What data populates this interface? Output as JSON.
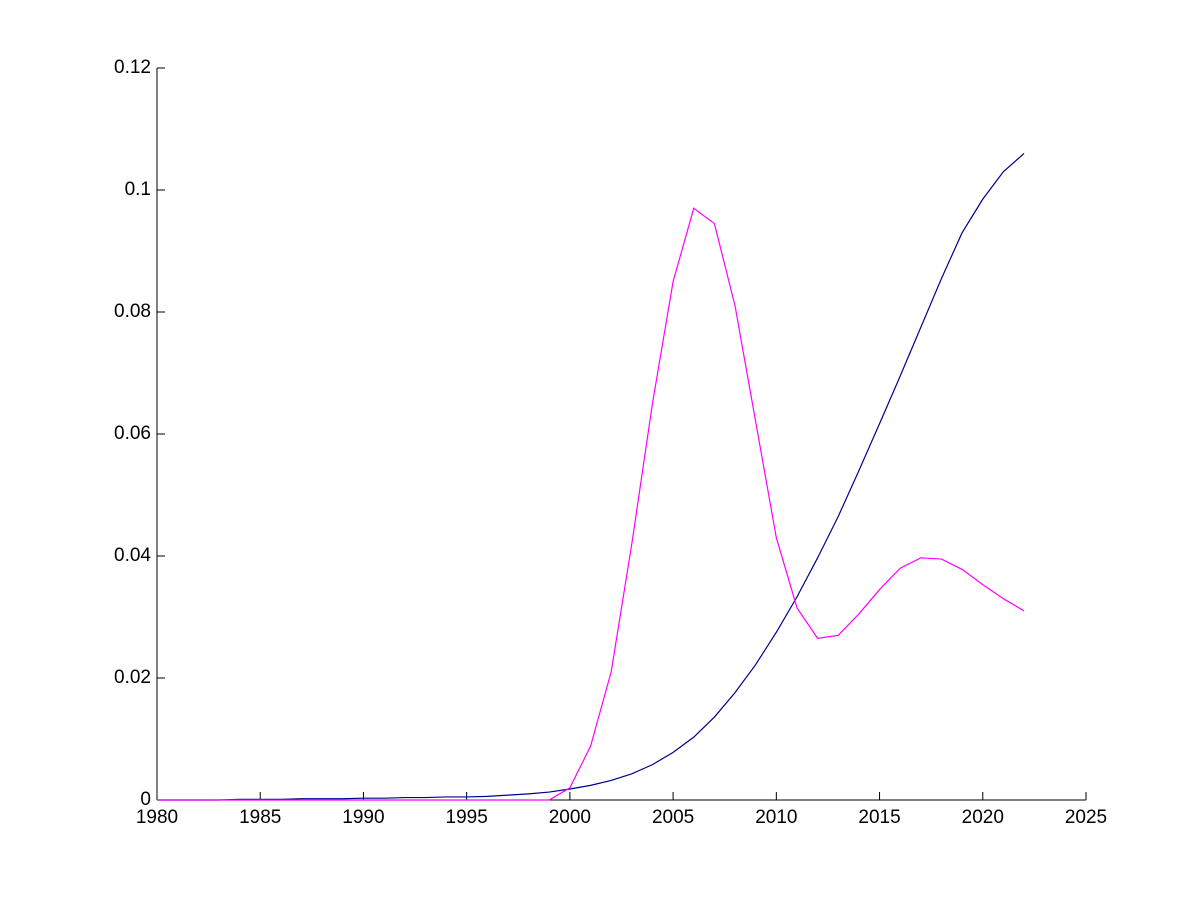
{
  "chart_data": {
    "type": "line",
    "x": [
      1980,
      1981,
      1982,
      1983,
      1984,
      1985,
      1986,
      1987,
      1988,
      1989,
      1990,
      1991,
      1992,
      1993,
      1994,
      1995,
      1996,
      1997,
      1998,
      1999,
      2000,
      2001,
      2002,
      2003,
      2004,
      2005,
      2006,
      2007,
      2008,
      2009,
      2010,
      2011,
      2012,
      2013,
      2014,
      2015,
      2016,
      2017,
      2018,
      2019,
      2020,
      2021,
      2022
    ],
    "series": [
      {
        "color": "#00008b",
        "values": [
          0,
          0,
          0,
          0,
          0.0001,
          0.0001,
          0.0001,
          0.0002,
          0.0002,
          0.0002,
          0.0003,
          0.0003,
          0.0004,
          0.0004,
          0.0005,
          0.0005,
          0.0006,
          0.0008,
          0.001,
          0.0013,
          0.0018,
          0.0024,
          0.0032,
          0.0043,
          0.0058,
          0.0078,
          0.0103,
          0.0136,
          0.0176,
          0.0222,
          0.0275,
          0.0333,
          0.0397,
          0.0465,
          0.054,
          0.0617,
          0.0695,
          0.0775,
          0.0855,
          0.093,
          0.0985,
          0.103,
          0.106
        ]
      },
      {
        "color": "#ff00ff",
        "values": [
          0,
          0,
          0,
          0,
          0,
          0,
          0,
          0,
          0,
          0,
          0,
          0,
          0,
          0,
          0,
          0,
          0,
          0,
          0,
          0,
          0.002,
          0.0088,
          0.021,
          0.042,
          0.065,
          0.085,
          0.097,
          0.0945,
          0.081,
          0.062,
          0.043,
          0.0315,
          0.0265,
          0.027,
          0.0305,
          0.0345,
          0.038,
          0.0397,
          0.0395,
          0.0378,
          0.0353,
          0.033,
          0.031
        ]
      }
    ],
    "xlim": [
      1980,
      2025
    ],
    "xticks": [
      1980,
      1985,
      1990,
      1995,
      2000,
      2005,
      2010,
      2015,
      2020,
      2025
    ],
    "ylim": [
      0,
      0.12
    ],
    "yticks": [
      0,
      0.02,
      0.04,
      0.06,
      0.08,
      0.1,
      0.12
    ]
  }
}
